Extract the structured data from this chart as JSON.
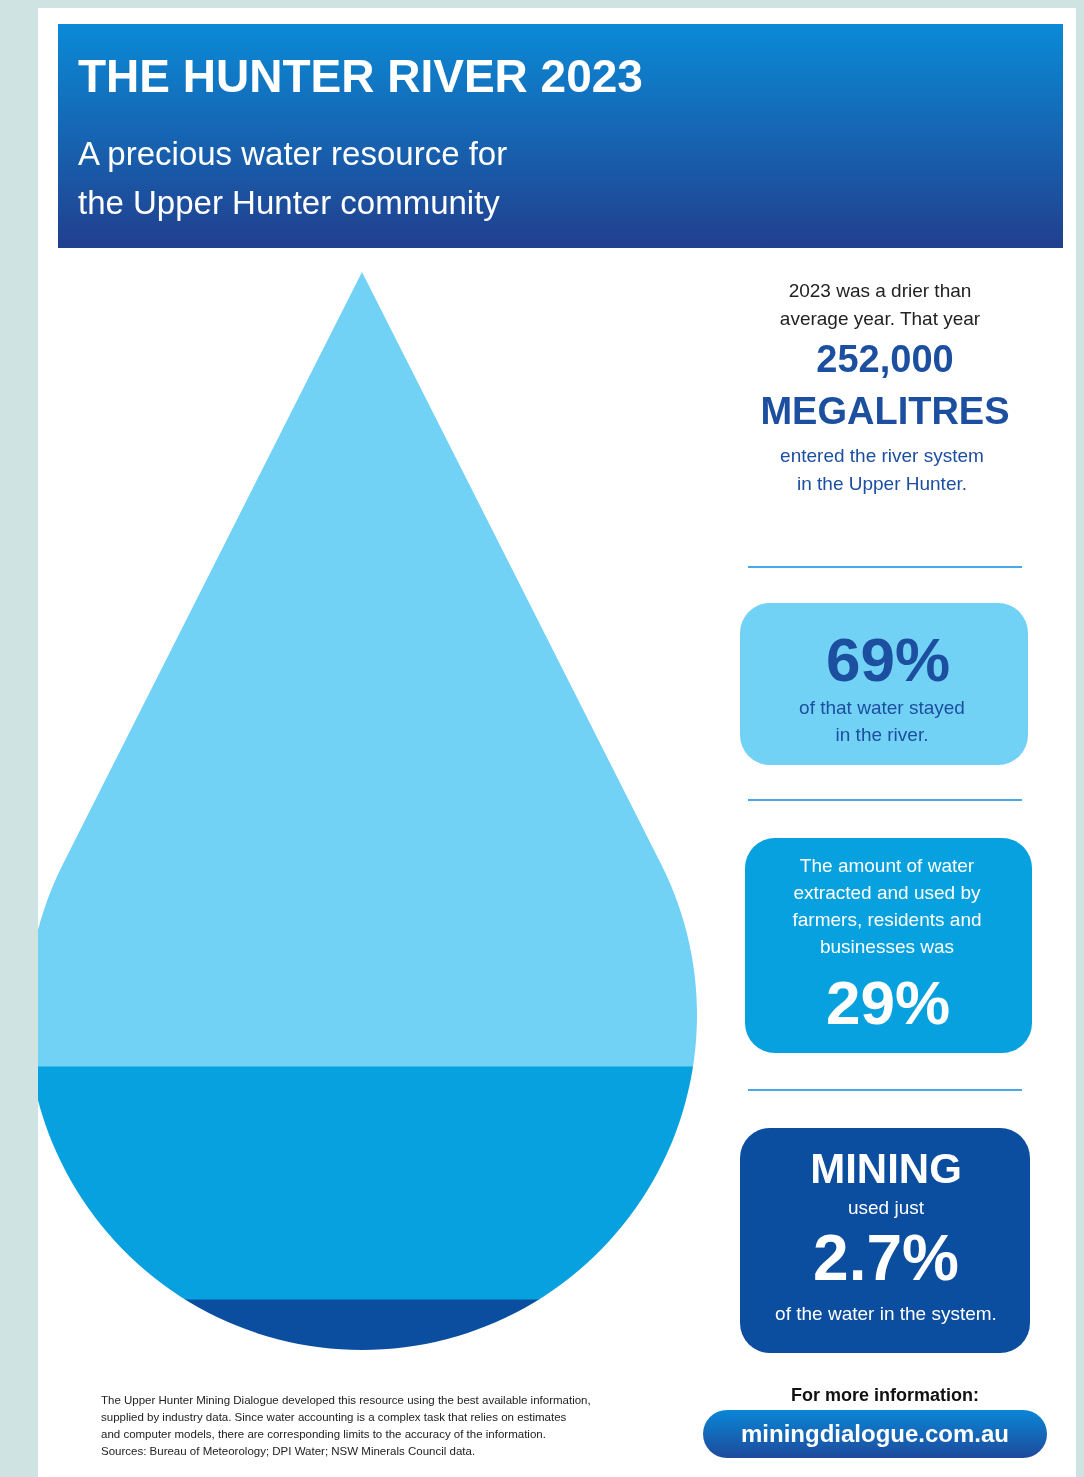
{
  "chart_data": {
    "type": "other",
    "title": "THE HUNTER RIVER 2023",
    "subtitle": "A precious water resource for the Upper Hunter community",
    "categories": [
      null,
      null,
      null
    ],
    "values": [
      69,
      29,
      2.7
    ],
    "value_labels": [
      "69%",
      "29%",
      "2.7%"
    ],
    "colors": [
      "#72d2f5",
      "#07a1df",
      "#0b4ea0"
    ],
    "annotations": [
      "2023 was a drier than average year. That year",
      "252,000 MEGALITRES",
      "entered the river system in the Upper Hunter.",
      "of that water stayed in the river.",
      "The amount of water extracted and used by farmers, residents and businesses was",
      "MINING",
      "used just",
      "of the water in the system.",
      "For more information:",
      "miningdialogue.com.au",
      "The Upper Hunter Mining Dialogue developed this resource using the best available information, supplied by industry data. Since water accounting is a complex task that relies on estimates and computer models, there are corresponding limits to the accuracy of the information.",
      "Sources: Bureau of Meteorology; DPI Water; NSW Minerals Council data."
    ]
  }
}
